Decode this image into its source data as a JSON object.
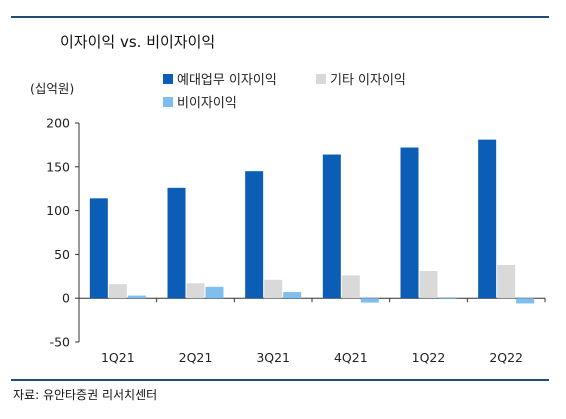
{
  "title": "이자이익 vs. 비이자이익",
  "unit_label": "(십억원)",
  "source": "자료: 유안타증권 리서치센터",
  "colors": {
    "rule": "#1f4e79",
    "series": [
      "#0b5db5",
      "#d9d9d9",
      "#7fbff0"
    ]
  },
  "chart_data": {
    "type": "bar",
    "categories": [
      "1Q21",
      "2Q21",
      "3Q21",
      "4Q21",
      "1Q22",
      "2Q22"
    ],
    "series": [
      {
        "name": "예대업무 이자이익",
        "values": [
          114,
          126,
          145,
          164,
          172,
          181
        ]
      },
      {
        "name": "기타 이자이익",
        "values": [
          16,
          17,
          21,
          26,
          31,
          38
        ]
      },
      {
        "name": "비이자이익",
        "values": [
          3,
          13,
          7,
          -5,
          -1,
          -6
        ]
      }
    ],
    "ylim": [
      -50,
      200
    ],
    "yticks": [
      -50,
      0,
      50,
      100,
      150,
      200
    ],
    "grid": false,
    "legend": "top"
  }
}
